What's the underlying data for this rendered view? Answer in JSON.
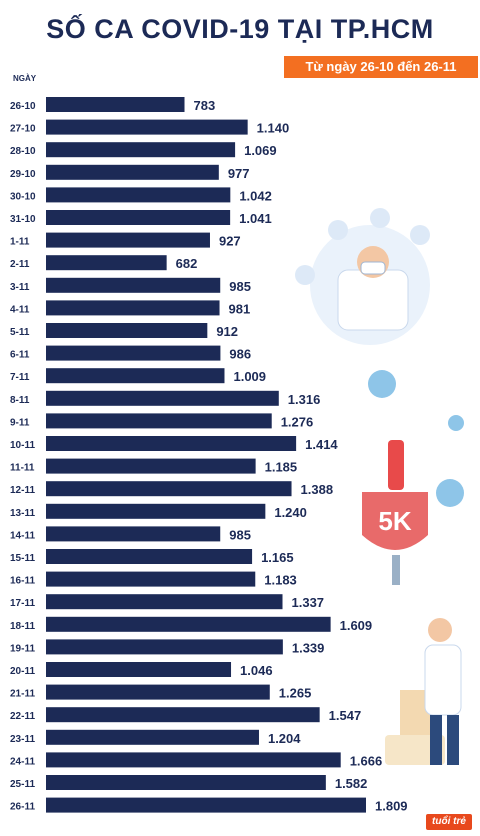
{
  "header": {
    "title": "SỐ CA COVID-19 TẠI TP.HCM",
    "subtitle": "Từ ngày 26-10 đến 26-11"
  },
  "brand": {
    "label": "tuổi trẻ"
  },
  "colors": {
    "bar": "#1c2a56",
    "title": "#1c2a56",
    "accent": "#f36f21"
  },
  "chart_data": {
    "type": "bar",
    "orientation": "horizontal",
    "xlabel": "",
    "ylabel": "NGÀY",
    "categories": [
      "26-10",
      "27-10",
      "28-10",
      "29-10",
      "30-10",
      "31-10",
      "1-11",
      "2-11",
      "3-11",
      "4-11",
      "5-11",
      "6-11",
      "7-11",
      "8-11",
      "9-11",
      "10-11",
      "11-11",
      "12-11",
      "13-11",
      "14-11",
      "15-11",
      "16-11",
      "17-11",
      "18-11",
      "19-11",
      "20-11",
      "21-11",
      "22-11",
      "23-11",
      "24-11",
      "25-11",
      "26-11"
    ],
    "values": [
      783,
      1140,
      1069,
      977,
      1042,
      1041,
      927,
      682,
      985,
      981,
      912,
      986,
      1009,
      1316,
      1276,
      1414,
      1185,
      1388,
      1240,
      985,
      1165,
      1183,
      1337,
      1609,
      1339,
      1046,
      1265,
      1547,
      1204,
      1666,
      1582,
      1809
    ],
    "value_labels": [
      "783",
      "1.140",
      "1.069",
      "977",
      "1.042",
      "1.041",
      "927",
      "682",
      "985",
      "981",
      "912",
      "986",
      "1.009",
      "1.316",
      "1.276",
      "1.414",
      "1.185",
      "1.388",
      "1.240",
      "985",
      "1.165",
      "1.183",
      "1.337",
      "1.609",
      "1.339",
      "1.046",
      "1.265",
      "1.547",
      "1.204",
      "1.666",
      "1.582",
      "1.809"
    ]
  }
}
